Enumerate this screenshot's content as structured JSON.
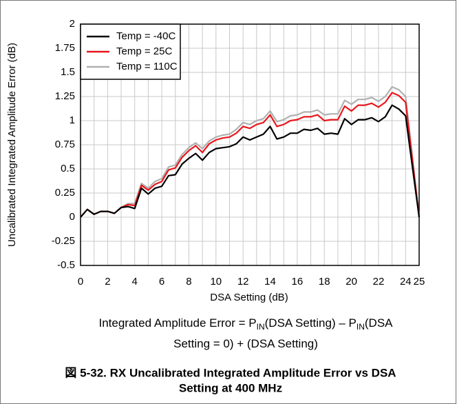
{
  "chart_data": {
    "type": "line",
    "ylabel": "Uncalibrated Integrated Amplitude Error (dB)",
    "xlabel": "DSA Setting (dB)",
    "x": [
      0,
      0.5,
      1,
      1.5,
      2,
      2.5,
      3,
      3.5,
      4,
      4.5,
      5,
      5.5,
      6,
      6.5,
      7,
      7.5,
      8,
      8.5,
      9,
      9.5,
      10,
      10.5,
      11,
      11.5,
      12,
      12.5,
      13,
      13.5,
      14,
      14.5,
      15,
      15.5,
      16,
      16.5,
      17,
      17.5,
      18,
      18.5,
      19,
      19.5,
      20,
      20.5,
      21,
      21.5,
      22,
      22.5,
      23,
      23.5,
      24,
      25
    ],
    "series": [
      {
        "name": "Temp = -40C",
        "color": "#000000",
        "values": [
          0,
          0.08,
          0.03,
          0.06,
          0.06,
          0.04,
          0.1,
          0.11,
          0.09,
          0.3,
          0.24,
          0.3,
          0.32,
          0.43,
          0.44,
          0.55,
          0.61,
          0.66,
          0.59,
          0.67,
          0.71,
          0.72,
          0.73,
          0.76,
          0.83,
          0.8,
          0.83,
          0.86,
          0.94,
          0.81,
          0.83,
          0.87,
          0.87,
          0.91,
          0.9,
          0.92,
          0.86,
          0.87,
          0.86,
          1.02,
          0.96,
          1.01,
          1.01,
          1.03,
          0.99,
          1.04,
          1.16,
          1.12,
          1.05,
          0
        ]
      },
      {
        "name": "Temp = 25C",
        "color": "#e8161b",
        "values": [
          0,
          0.08,
          0.03,
          0.06,
          0.06,
          0.04,
          0.1,
          0.13,
          0.12,
          0.33,
          0.28,
          0.34,
          0.37,
          0.49,
          0.51,
          0.62,
          0.69,
          0.74,
          0.67,
          0.76,
          0.8,
          0.82,
          0.83,
          0.87,
          0.94,
          0.92,
          0.96,
          0.98,
          1.06,
          0.94,
          0.96,
          1.0,
          1.01,
          1.04,
          1.04,
          1.06,
          1.0,
          1.01,
          1.01,
          1.15,
          1.1,
          1.16,
          1.16,
          1.18,
          1.14,
          1.19,
          1.29,
          1.26,
          1.19,
          0
        ]
      },
      {
        "name": "Temp = 110C",
        "color": "#b0b0b0",
        "values": [
          0,
          0.08,
          0.03,
          0.06,
          0.06,
          0.04,
          0.1,
          0.14,
          0.14,
          0.35,
          0.3,
          0.37,
          0.4,
          0.52,
          0.54,
          0.65,
          0.72,
          0.77,
          0.71,
          0.79,
          0.83,
          0.85,
          0.86,
          0.91,
          0.98,
          0.96,
          1.0,
          1.02,
          1.1,
          0.99,
          1.01,
          1.05,
          1.06,
          1.09,
          1.09,
          1.11,
          1.06,
          1.07,
          1.07,
          1.21,
          1.17,
          1.22,
          1.22,
          1.24,
          1.2,
          1.25,
          1.35,
          1.32,
          1.25,
          0
        ]
      }
    ],
    "xlim": [
      0,
      25
    ],
    "xticks": [
      0,
      2,
      4,
      6,
      8,
      10,
      12,
      14,
      16,
      18,
      20,
      22,
      24,
      25
    ],
    "ylim": [
      -0.5,
      2
    ],
    "yticks": [
      -0.5,
      -0.25,
      0,
      0.25,
      0.5,
      0.75,
      1,
      1.25,
      1.5,
      1.75,
      2
    ],
    "grid": true,
    "legend": "upper left",
    "note_lines": [
      [
        "Integrated Amplitude Error = P",
        "IN",
        "(DSA Setting) – P",
        "IN",
        "(DSA"
      ],
      [
        "Setting = 0) + (DSA Setting)"
      ]
    ],
    "caption_lines": [
      "図 5-32. RX Uncalibrated Integrated Amplitude Error vs DSA",
      "Setting at 400 MHz"
    ]
  }
}
